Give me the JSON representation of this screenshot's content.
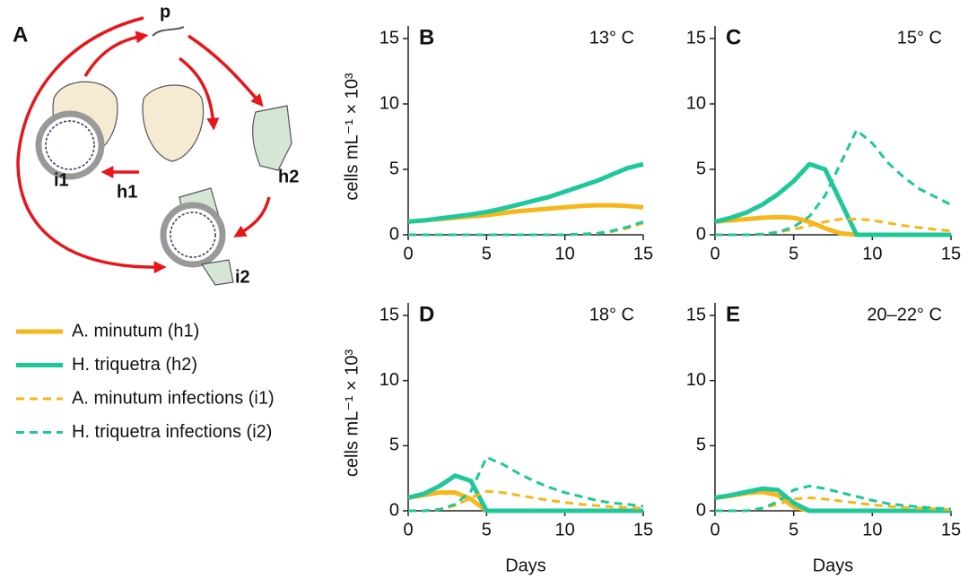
{
  "diagram": {
    "label": "A",
    "nodes": [
      "p",
      "h1",
      "h2",
      "i1",
      "i2"
    ]
  },
  "chart_data": [
    {
      "type": "line",
      "label": "B",
      "title": "13° C",
      "ylabel": "cells mL⁻¹ × 10³",
      "x": [
        0,
        1,
        2,
        3,
        4,
        5,
        6,
        7,
        8,
        9,
        10,
        11,
        12,
        13,
        14,
        15
      ],
      "xlim": [
        0,
        15
      ],
      "ylim": [
        0,
        15
      ],
      "xticks": [
        0,
        5,
        10,
        15
      ],
      "yticks": [
        0,
        5,
        10,
        15
      ],
      "series": [
        {
          "name": "A. minutum (h1)",
          "color": "#f7b619",
          "dash": false,
          "values": [
            1.0,
            1.1,
            1.2,
            1.3,
            1.4,
            1.5,
            1.65,
            1.8,
            1.9,
            2.0,
            2.1,
            2.2,
            2.25,
            2.25,
            2.2,
            2.1
          ]
        },
        {
          "name": "H. triquetra (h2)",
          "color": "#1ec89a",
          "dash": false,
          "values": [
            1.0,
            1.1,
            1.25,
            1.4,
            1.55,
            1.75,
            2.0,
            2.3,
            2.6,
            2.9,
            3.3,
            3.7,
            4.1,
            4.6,
            5.1,
            5.4
          ]
        },
        {
          "name": "A. minutum infections (i1)",
          "color": "#f7b619",
          "dash": true,
          "values": [
            0,
            0,
            0,
            0,
            0,
            0,
            0,
            0,
            0,
            0,
            0,
            0.05,
            0.1,
            0.25,
            0.5,
            0.9
          ]
        },
        {
          "name": "H. triquetra infections (i2)",
          "color": "#1ec89a",
          "dash": true,
          "values": [
            0,
            0,
            0,
            0,
            0,
            0,
            0,
            0,
            0,
            0,
            0,
            0.05,
            0.1,
            0.3,
            0.6,
            1.0
          ]
        }
      ]
    },
    {
      "type": "line",
      "label": "C",
      "title": "15° C",
      "x": [
        0,
        1,
        2,
        3,
        4,
        5,
        6,
        7,
        8,
        9,
        10,
        11,
        12,
        13,
        14,
        15
      ],
      "xlim": [
        0,
        15
      ],
      "ylim": [
        0,
        15
      ],
      "xticks": [
        0,
        5,
        10,
        15
      ],
      "yticks": [
        0,
        5,
        10,
        15
      ],
      "series": [
        {
          "name": "A. minutum (h1)",
          "color": "#f7b619",
          "dash": false,
          "values": [
            1.0,
            1.1,
            1.2,
            1.3,
            1.35,
            1.3,
            1.0,
            0.5,
            0.1,
            0,
            0,
            0,
            0,
            0,
            0,
            0
          ]
        },
        {
          "name": "H. triquetra (h2)",
          "color": "#1ec89a",
          "dash": false,
          "values": [
            1.0,
            1.3,
            1.7,
            2.3,
            3.1,
            4.1,
            5.4,
            5.0,
            2.5,
            0,
            0,
            0,
            0,
            0,
            0,
            0
          ]
        },
        {
          "name": "A. minutum infections (i1)",
          "color": "#f7b619",
          "dash": true,
          "values": [
            0,
            0,
            0,
            0.05,
            0.2,
            0.4,
            0.7,
            1.0,
            1.2,
            1.2,
            1.1,
            0.9,
            0.7,
            0.55,
            0.4,
            0.3
          ]
        },
        {
          "name": "H. triquetra infections (i2)",
          "color": "#1ec89a",
          "dash": true,
          "values": [
            0,
            0,
            0,
            0.05,
            0.2,
            0.6,
            1.4,
            3.0,
            5.5,
            8.0,
            7.0,
            5.5,
            4.4,
            3.5,
            2.9,
            2.3
          ]
        }
      ]
    },
    {
      "type": "line",
      "label": "D",
      "title": "18°  C",
      "ylabel": "cells mL⁻¹ × 10³",
      "xlabel": "Days",
      "x": [
        0,
        1,
        2,
        3,
        4,
        5,
        6,
        7,
        8,
        9,
        10,
        11,
        12,
        13,
        14,
        15
      ],
      "xlim": [
        0,
        15
      ],
      "ylim": [
        0,
        15
      ],
      "xticks": [
        0,
        5,
        10,
        15
      ],
      "yticks": [
        0,
        5,
        10,
        15
      ],
      "series": [
        {
          "name": "A. minutum (h1)",
          "color": "#f7b619",
          "dash": false,
          "values": [
            1.0,
            1.2,
            1.4,
            1.4,
            0.9,
            0,
            0,
            0,
            0,
            0,
            0,
            0,
            0,
            0,
            0,
            0
          ]
        },
        {
          "name": "H. triquetra (h2)",
          "color": "#1ec89a",
          "dash": false,
          "values": [
            1.0,
            1.3,
            1.9,
            2.7,
            2.3,
            0,
            0,
            0,
            0,
            0,
            0,
            0,
            0,
            0,
            0,
            0
          ]
        },
        {
          "name": "A. minutum infections (i1)",
          "color": "#f7b619",
          "dash": true,
          "values": [
            0,
            0,
            0.1,
            0.4,
            1.0,
            1.5,
            1.4,
            1.2,
            1.0,
            0.8,
            0.65,
            0.5,
            0.4,
            0.3,
            0.25,
            0.2
          ]
        },
        {
          "name": "H. triquetra infections (i2)",
          "color": "#1ec89a",
          "dash": true,
          "values": [
            0,
            0,
            0.1,
            0.5,
            1.5,
            4.1,
            3.6,
            2.9,
            2.3,
            1.8,
            1.4,
            1.1,
            0.8,
            0.6,
            0.5,
            0.35
          ]
        }
      ]
    },
    {
      "type": "line",
      "label": "E",
      "title": "20–22° C",
      "xlabel": "Days",
      "x": [
        0,
        1,
        2,
        3,
        4,
        5,
        6,
        7,
        8,
        9,
        10,
        11,
        12,
        13,
        14,
        15
      ],
      "xlim": [
        0,
        15
      ],
      "ylim": [
        0,
        15
      ],
      "xticks": [
        0,
        5,
        10,
        15
      ],
      "yticks": [
        0,
        5,
        10,
        15
      ],
      "series": [
        {
          "name": "A. minutum (h1)",
          "color": "#f7b619",
          "dash": false,
          "values": [
            1.0,
            1.15,
            1.35,
            1.45,
            1.2,
            0.3,
            0,
            0,
            0,
            0,
            0,
            0,
            0,
            0,
            0,
            0
          ]
        },
        {
          "name": "H. triquetra (h2)",
          "color": "#1ec89a",
          "dash": false,
          "values": [
            1.0,
            1.2,
            1.45,
            1.7,
            1.6,
            0.6,
            0,
            0,
            0,
            0,
            0,
            0,
            0,
            0,
            0,
            0
          ]
        },
        {
          "name": "A. minutum infections (i1)",
          "color": "#f7b619",
          "dash": true,
          "values": [
            0,
            0,
            0,
            0.2,
            0.5,
            0.9,
            1.0,
            0.9,
            0.75,
            0.6,
            0.45,
            0.35,
            0.25,
            0.2,
            0.15,
            0.1
          ]
        },
        {
          "name": "H. triquetra infections (i2)",
          "color": "#1ec89a",
          "dash": true,
          "values": [
            0,
            0,
            0,
            0.2,
            0.7,
            1.6,
            1.9,
            1.7,
            1.4,
            1.1,
            0.8,
            0.55,
            0.4,
            0.3,
            0.2,
            0.15
          ]
        }
      ]
    }
  ]
}
